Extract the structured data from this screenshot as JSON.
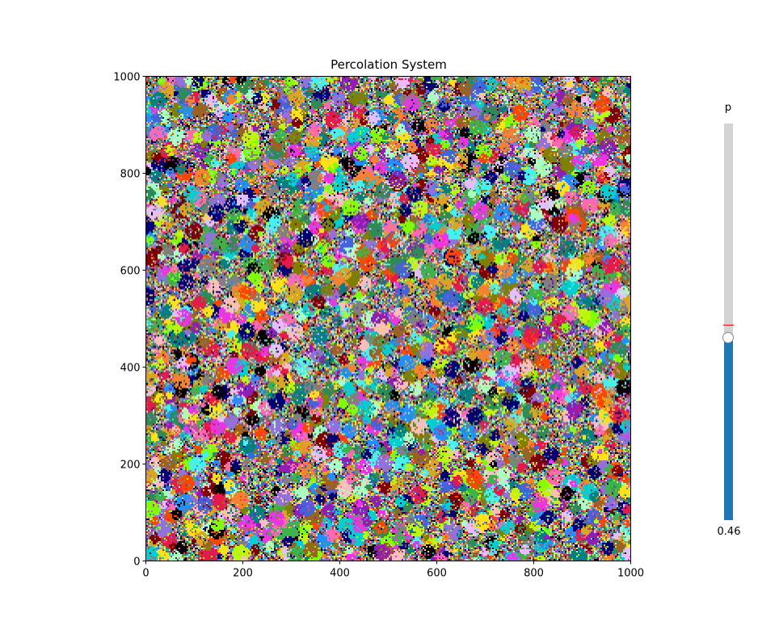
{
  "chart_data": {
    "type": "heatmap",
    "title": "Percolation System",
    "xlabel": "",
    "ylabel": "",
    "xlim": [
      0,
      1000
    ],
    "ylim": [
      0,
      1000
    ],
    "x_ticks": [
      0,
      200,
      400,
      600,
      800,
      1000
    ],
    "y_ticks": [
      0,
      200,
      400,
      600,
      800,
      1000
    ],
    "x_tick_labels": [
      "0",
      "200",
      "400",
      "600",
      "800",
      "1000"
    ],
    "y_tick_labels": [
      "0",
      "200",
      "400",
      "600",
      "800",
      "1000"
    ],
    "grid": false,
    "description_colors": [
      "#e6194b",
      "#3cb44b",
      "#ffe119",
      "#4363d8",
      "#f58231",
      "#911eb4",
      "#46f0f0",
      "#f032e6",
      "#bcf60c",
      "#fabebe",
      "#008080",
      "#e6beff",
      "#9a6324",
      "#800000",
      "#aaffc3",
      "#808000",
      "#000075",
      "#808080",
      "#1e90ff",
      "#ff69b4",
      "#00ced1",
      "#7fff00",
      "#ff4500",
      "#9370db",
      "#2e8b57",
      "#daa520",
      "#000000"
    ]
  },
  "slider": {
    "label": "p",
    "value": 0.46,
    "value_text": "0.46",
    "min": 0,
    "max": 1,
    "reference_value": 0.4927,
    "fill_color": "#1f77b4",
    "track_color": "#d3d3d3",
    "reference_color": "#ff0000"
  }
}
